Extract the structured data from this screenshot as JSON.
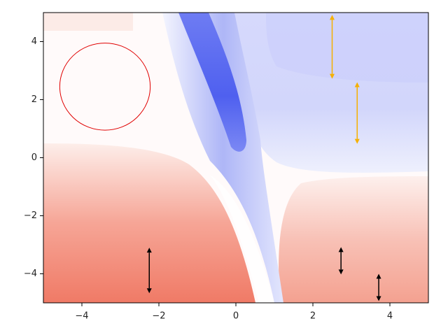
{
  "chart_data": {
    "type": "contour",
    "xlim": [
      -5,
      5
    ],
    "ylim": [
      -5,
      5
    ],
    "xticks": [
      {
        "value": -4,
        "label": "−4"
      },
      {
        "value": -2,
        "label": "−2"
      },
      0,
      2,
      4
    ],
    "yticks": [
      {
        "value": -4,
        "label": "−4"
      },
      {
        "value": -2,
        "label": "−2"
      },
      0,
      2,
      4
    ],
    "ellipses": [
      {
        "x": -3.4,
        "y": 2.45,
        "width": 2.35,
        "height": 3.0,
        "color": "#e00000"
      }
    ],
    "arrows": [
      {
        "x": 2.5,
        "y1": 4.92,
        "y2": 2.72,
        "color": "#f5b000"
      },
      {
        "x": 3.15,
        "y1": 2.6,
        "y2": 0.48,
        "color": "#f5b000"
      },
      {
        "x": -2.25,
        "y1": -3.1,
        "y2": -4.67,
        "color": "#000000"
      },
      {
        "x": 2.73,
        "y1": -3.08,
        "y2": -4.02,
        "color": "#000000"
      },
      {
        "x": 3.71,
        "y1": -4.0,
        "y2": -4.94,
        "color": "#000000"
      }
    ]
  }
}
